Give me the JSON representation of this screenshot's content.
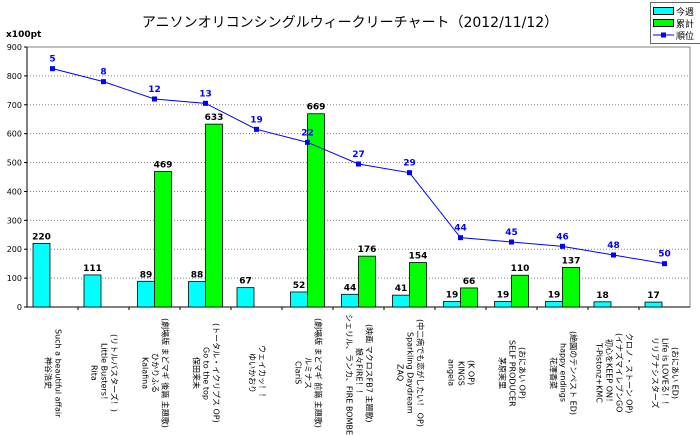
{
  "chart_data": {
    "type": "bar+line",
    "title": "アニソンオリコンシングルウィークリーチャート（2012/11/12）",
    "ylabel": "x100pt",
    "ylim": [
      0,
      900
    ],
    "yticks": [
      0,
      100,
      200,
      300,
      400,
      500,
      600,
      700,
      800,
      900
    ],
    "grid": true,
    "legend_position": "top-right",
    "categories": [
      "神谷浩史\nSuch a beautiful affair",
      "Rita\nLittle Busters！\n(リトルバスターズ！)",
      "Kalafina\nひかりふる\n(劇場版 まどマギ 後篇 主題歌)",
      "保田来未\nGo to the top\n(トータル・イクリプス OP)",
      "ゆいかおり\nウェイカッ！！",
      "ClariS\nルミナス\n(劇場版 まどマギ 前篇 主題歌)",
      "シェリル、ランカ、FIRE BOMBER\n娘々FIRE！！\n(映画 マクロスFB7 主題歌)",
      "ZAQ\nSparkling Daydream\n(中二病でも恋がしたい！ OP)",
      "angela\nKINGS\n(K OP)",
      "茅原実里\nSELF PRODUCER\n(おにあい OP)",
      "花澤香菜\nhappy endings\n(絶園のテンペスト ED)",
      "T-Pistonz+KMC\n初心をKEEP ON！\n(イナズマイレブンGO\nクロノ・ストーン OP)",
      "リリアナシスターズ\nLife is LOVEる！！\n(おにあい ED)"
    ],
    "series": [
      {
        "name": "今週",
        "type": "bar",
        "color": "#00FFFF",
        "values": [
          220,
          111,
          89,
          88,
          67,
          52,
          44,
          41,
          19,
          19,
          19,
          18,
          17
        ]
      },
      {
        "name": "累計",
        "type": "bar",
        "color": "#00FF00",
        "values": [
          null,
          null,
          469,
          633,
          null,
          669,
          176,
          154,
          66,
          110,
          137,
          null,
          null
        ]
      },
      {
        "name": "順位",
        "type": "line",
        "color": "#0000FF",
        "values": [
          5,
          8,
          12,
          13,
          19,
          22,
          27,
          29,
          44,
          45,
          46,
          48,
          50
        ]
      }
    ]
  }
}
